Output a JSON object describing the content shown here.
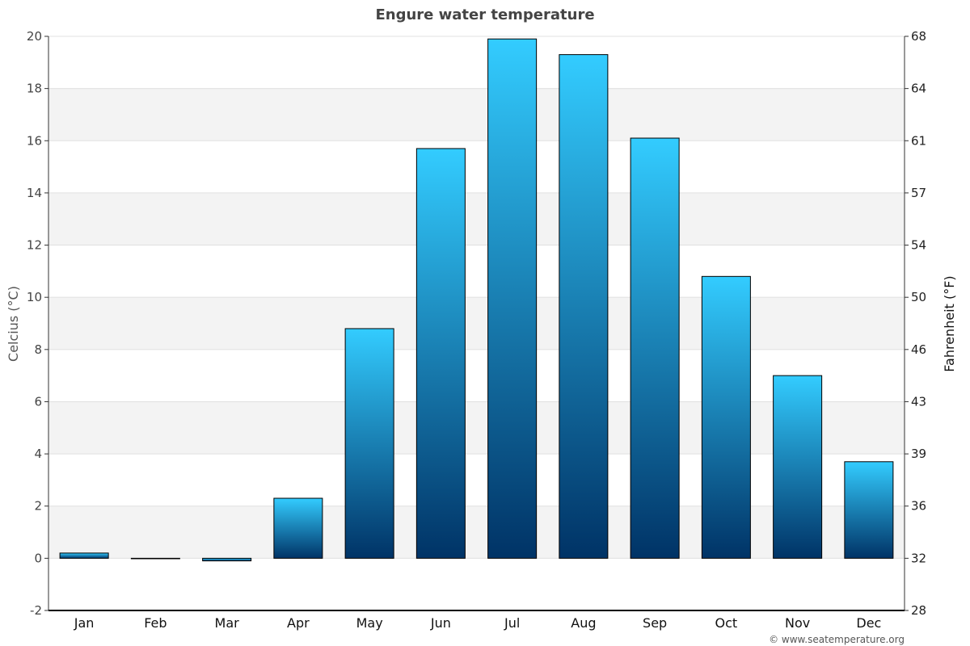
{
  "chart_data": {
    "type": "bar",
    "title": "Engure water temperature",
    "ylabel": "Celcius (°C)",
    "ylabel_right": "Fahrenheit (°F)",
    "categories": [
      "Jan",
      "Feb",
      "Mar",
      "Apr",
      "May",
      "Jun",
      "Jul",
      "Aug",
      "Sep",
      "Oct",
      "Nov",
      "Dec"
    ],
    "values": [
      0.2,
      0.0,
      -0.1,
      2.3,
      8.8,
      15.7,
      19.9,
      19.3,
      16.1,
      10.8,
      7.0,
      3.7
    ],
    "ylim": [
      -2,
      20
    ],
    "yticks": [
      "-2",
      "0",
      "2",
      "4",
      "6",
      "8",
      "10",
      "12",
      "14",
      "16",
      "18",
      "20"
    ],
    "yticks_right": [
      "28",
      "32",
      "36",
      "39",
      "43",
      "46",
      "50",
      "54",
      "57",
      "61",
      "64",
      "68"
    ],
    "grid": true,
    "legend": "none",
    "colors": {
      "bar_top": "#33ccff",
      "bar_bottom": "#003366",
      "bar_outline": "#000000",
      "band": "#f3f3f3",
      "gridline": "#e0e0e0"
    }
  },
  "credit": "© www.seatemperature.org"
}
